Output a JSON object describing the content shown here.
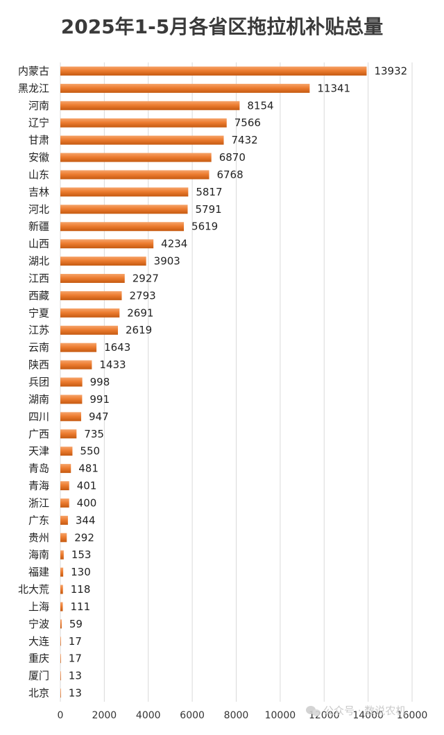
{
  "chart_data": {
    "type": "bar",
    "orientation": "horizontal",
    "title": "2025年1-5月各省区拖拉机补贴总量",
    "categories": [
      "内蒙古",
      "黑龙江",
      "河南",
      "辽宁",
      "甘肃",
      "安徽",
      "山东",
      "吉林",
      "河北",
      "新疆",
      "山西",
      "湖北",
      "江西",
      "西藏",
      "宁夏",
      "江苏",
      "云南",
      "陕西",
      "兵团",
      "湖南",
      "四川",
      "广西",
      "天津",
      "青岛",
      "青海",
      "浙江",
      "广东",
      "贵州",
      "海南",
      "福建",
      "北大荒",
      "上海",
      "宁波",
      "大连",
      "重庆",
      "厦门",
      "北京"
    ],
    "values": [
      13932,
      11341,
      8154,
      7566,
      7432,
      6870,
      6768,
      5817,
      5791,
      5619,
      4234,
      3903,
      2927,
      2793,
      2691,
      2619,
      1643,
      1433,
      998,
      991,
      947,
      735,
      550,
      481,
      401,
      400,
      344,
      292,
      153,
      130,
      118,
      111,
      59,
      17,
      17,
      13,
      13
    ],
    "xlim": [
      0,
      16000
    ],
    "xticks": [
      0,
      2000,
      4000,
      6000,
      8000,
      10000,
      12000,
      14000,
      16000
    ],
    "grid": true,
    "data_labels": true,
    "bar_color": "#ed7d31",
    "bar_color_dark": "#c55a11",
    "bar_color_light": "#f6a46b"
  },
  "watermark": {
    "text": "公众号 · 数说农机",
    "icon": "wechat-icon"
  }
}
